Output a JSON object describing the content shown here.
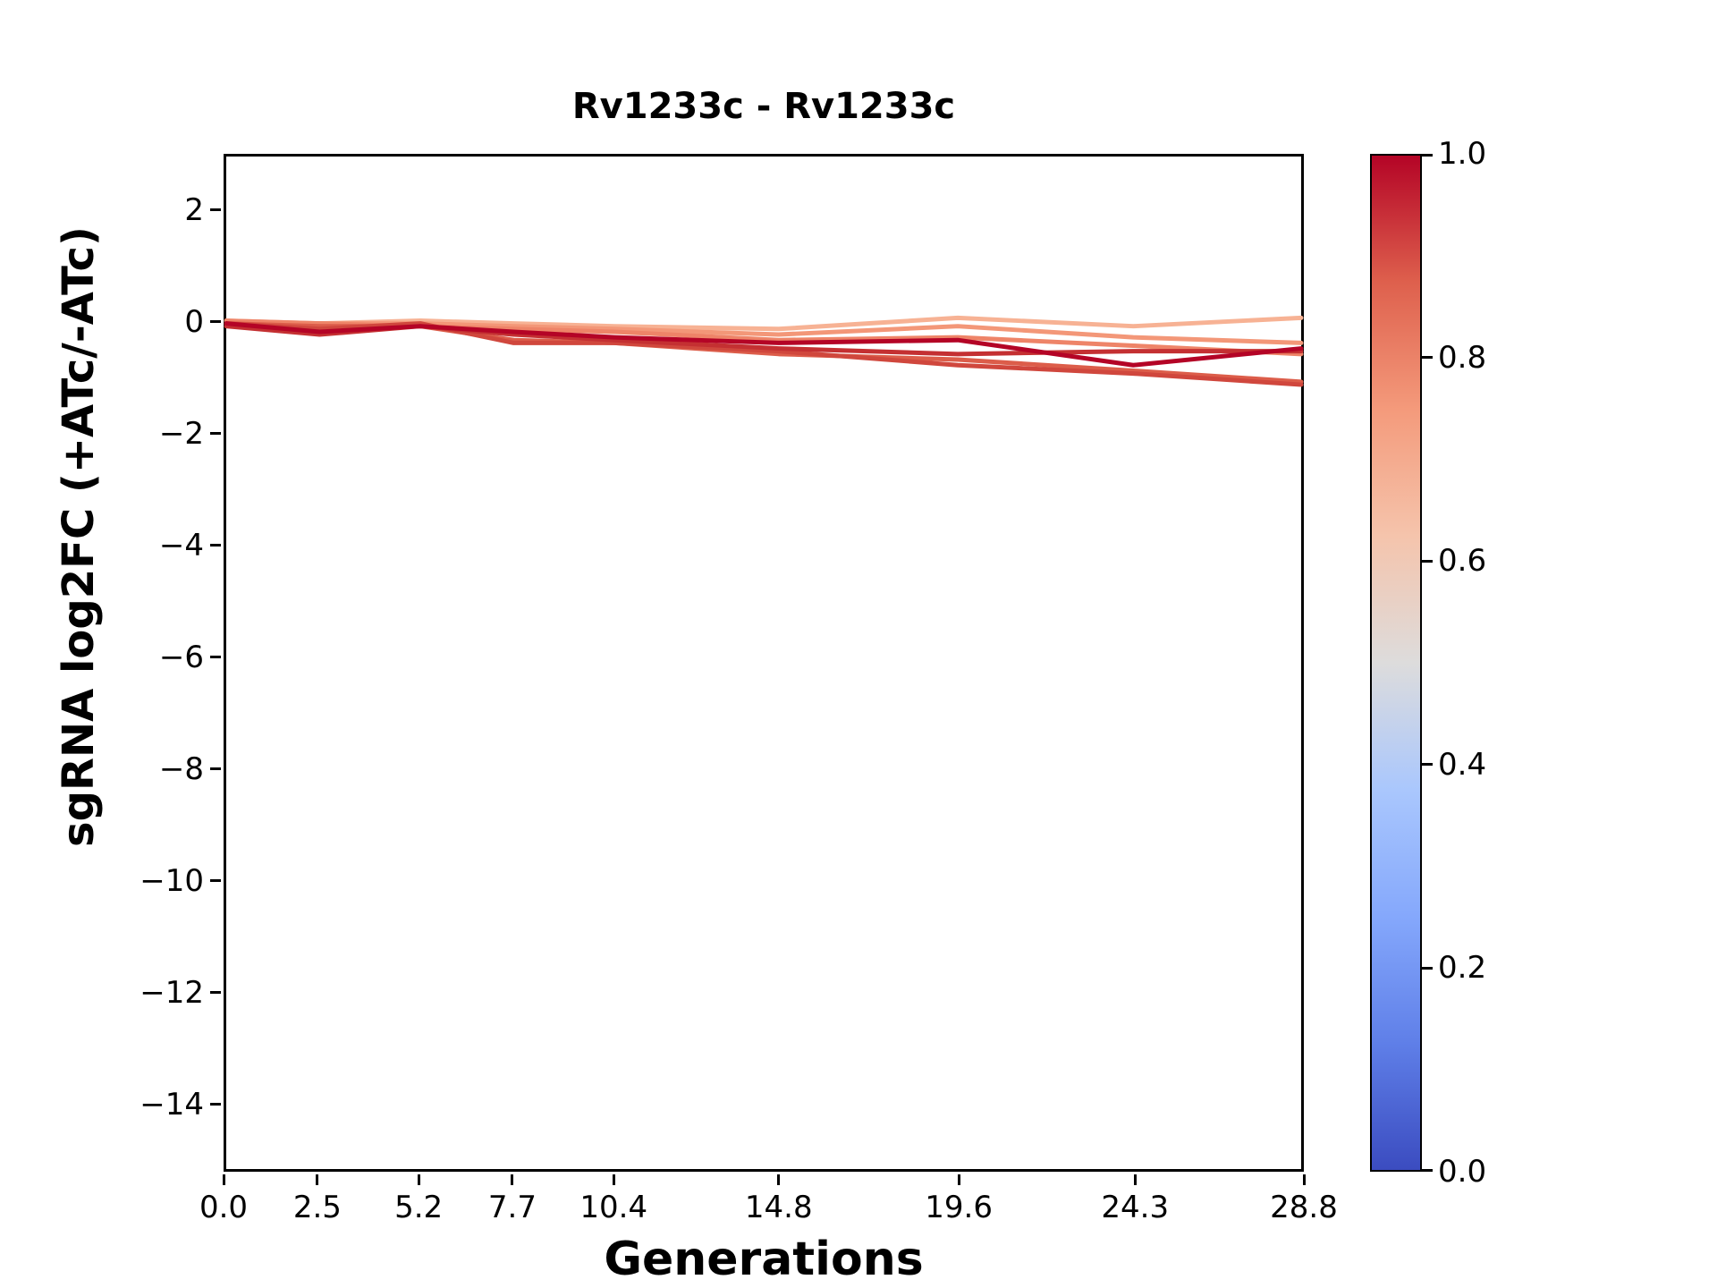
{
  "title": "Rv1233c - Rv1233c",
  "xlabel": "Generations",
  "ylabel": "sgRNA log2FC (+ATc/-ATc)",
  "chart_data": {
    "type": "line",
    "title": "Rv1233c - Rv1233c",
    "xlabel": "Generations",
    "ylabel": "sgRNA log2FC (+ATc/-ATc)",
    "x": [
      0.0,
      2.5,
      5.2,
      7.7,
      10.4,
      14.8,
      19.6,
      24.3,
      28.8
    ],
    "xlim": [
      0.0,
      28.8
    ],
    "ylim": [
      -15.2,
      3.0
    ],
    "grid": false,
    "legend": "none",
    "xticks": {
      "values": [
        0.0,
        2.5,
        5.2,
        7.7,
        10.4,
        14.8,
        19.6,
        24.3,
        28.8
      ],
      "labels": [
        "0.0",
        "2.5",
        "5.2",
        "7.7",
        "10.4",
        "14.8",
        "19.6",
        "24.3",
        "28.8"
      ]
    },
    "yticks": {
      "values": [
        2,
        0,
        -2,
        -4,
        -6,
        -8,
        -10,
        -12,
        -14
      ],
      "labels": [
        "2",
        "0",
        "−2",
        "−4",
        "−6",
        "−8",
        "−10",
        "−12",
        "−14"
      ]
    },
    "series": [
      {
        "color": "#b40426",
        "colormap_value": 1.0,
        "values": [
          0.0,
          -0.15,
          -0.05,
          -0.15,
          -0.25,
          -0.35,
          -0.3,
          -0.75,
          -0.45
        ]
      },
      {
        "color": "#c43032",
        "colormap_value": 0.93,
        "values": [
          -0.05,
          -0.2,
          -0.05,
          -0.2,
          -0.3,
          -0.45,
          -0.55,
          -0.5,
          -0.5
        ]
      },
      {
        "color": "#d0473d",
        "colormap_value": 0.86,
        "values": [
          0.0,
          -0.1,
          0.0,
          -0.35,
          -0.35,
          -0.5,
          -0.75,
          -0.9,
          -1.1
        ]
      },
      {
        "color": "#dc5d4a",
        "colormap_value": 0.8,
        "values": [
          0.0,
          -0.05,
          -0.05,
          -0.3,
          -0.35,
          -0.55,
          -0.65,
          -0.85,
          -1.05
        ]
      },
      {
        "color": "#ee8468",
        "colormap_value": 0.72,
        "values": [
          0.05,
          0.0,
          -0.05,
          -0.1,
          -0.15,
          -0.3,
          -0.25,
          -0.4,
          -0.55
        ]
      },
      {
        "color": "#f39778",
        "colormap_value": 0.65,
        "values": [
          0.0,
          0.0,
          0.0,
          -0.05,
          -0.1,
          -0.2,
          -0.05,
          -0.25,
          -0.35
        ]
      },
      {
        "color": "#f7b294",
        "colormap_value": 0.58,
        "values": [
          0.05,
          0.0,
          0.05,
          0.0,
          -0.05,
          -0.1,
          0.1,
          -0.05,
          0.1
        ]
      }
    ],
    "colorbar": {
      "min": 0.0,
      "max": 1.0,
      "tick_values": [
        1.0,
        0.8,
        0.6,
        0.4,
        0.2,
        0.0
      ],
      "tick_labels": [
        "1.0",
        "0.8",
        "0.6",
        "0.4",
        "0.2",
        "0.0"
      ],
      "colormap": "coolwarm",
      "gradient_bottom_to_top": [
        "#3b4cc0",
        "#5f7fe8",
        "#85a8fc",
        "#aac7fd",
        "#dddcdc",
        "#f5c4ac",
        "#f49a7b",
        "#de604d",
        "#b40426"
      ]
    }
  }
}
